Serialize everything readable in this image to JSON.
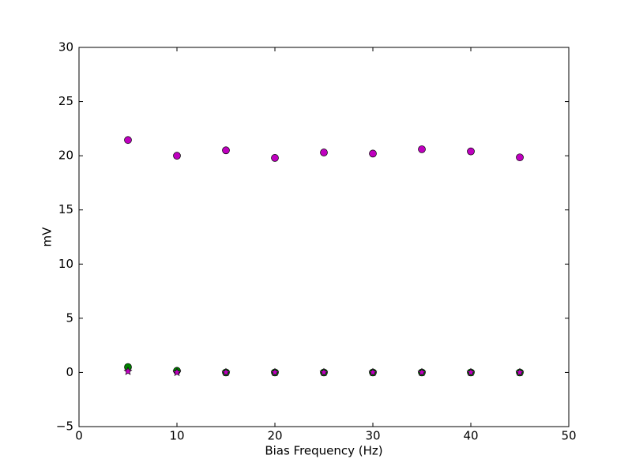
{
  "chart_data": {
    "type": "scatter",
    "xlabel": "Bias Frequency (Hz)",
    "ylabel": "mV",
    "x": [
      5,
      10,
      15,
      20,
      25,
      30,
      35,
      40,
      45
    ],
    "series": [
      {
        "color": "#bf00bf",
        "marker": "circle",
        "values": [
          21.45,
          20.0,
          20.5,
          19.8,
          20.3,
          20.2,
          20.6,
          20.4,
          19.85
        ]
      },
      {
        "color": "#008000",
        "marker": "circle",
        "values": [
          0.5,
          0.15,
          0,
          0,
          0,
          0,
          0,
          0,
          0
        ]
      },
      {
        "color": "#bf00bf",
        "marker": "star",
        "values": [
          0.1,
          0.0,
          0,
          0,
          0,
          0,
          0,
          0,
          0
        ]
      }
    ],
    "xlim": [
      0,
      50
    ],
    "xticks": [
      0,
      10,
      20,
      30,
      40,
      50
    ],
    "ylim": [
      -5,
      30
    ],
    "yticks": [
      {
        "value": -5,
        "label": "−5"
      },
      0,
      5,
      10,
      15,
      20,
      25,
      30
    ]
  }
}
